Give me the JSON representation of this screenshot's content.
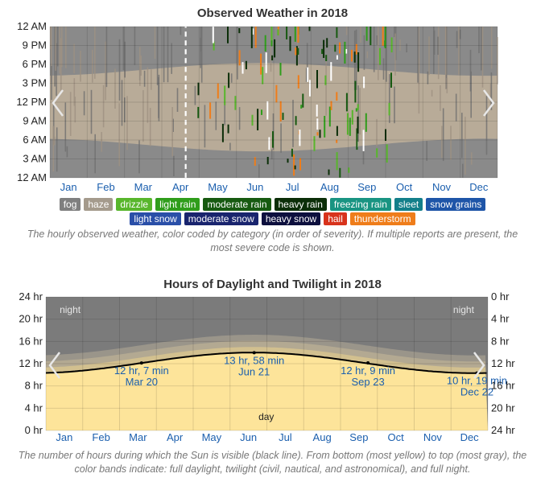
{
  "weather": {
    "title": "Observed Weather in 2018",
    "y_ticks": [
      "12 AM",
      "9 PM",
      "6 PM",
      "3 PM",
      "12 PM",
      "9 AM",
      "6 AM",
      "3 AM",
      "12 AM"
    ],
    "legend_row1": [
      {
        "label": "fog",
        "color": "#7f7f7f"
      },
      {
        "label": "haze",
        "color": "#a49a8c"
      },
      {
        "label": "drizzle",
        "color": "#58b62c"
      },
      {
        "label": "light rain",
        "color": "#2f9d1b"
      },
      {
        "label": "moderate rain",
        "color": "#175a11"
      },
      {
        "label": "heavy rain",
        "color": "#0b2e08"
      },
      {
        "label": "freezing rain",
        "color": "#199482"
      },
      {
        "label": "sleet",
        "color": "#137f8a"
      },
      {
        "label": "snow grains",
        "color": "#1e55a8"
      }
    ],
    "legend_row2": [
      {
        "label": "light snow",
        "color": "#2a4fa8"
      },
      {
        "label": "moderate snow",
        "color": "#19246e"
      },
      {
        "label": "heavy snow",
        "color": "#0d0f3e"
      },
      {
        "label": "hail",
        "color": "#d8331c"
      },
      {
        "label": "thunderstorm",
        "color": "#ef7d1a"
      }
    ],
    "caption": "The hourly observed weather, color coded by category (in order of severity). If multiple reports are present, the most severe code is shown."
  },
  "daylight": {
    "title": "Hours of Daylight and Twilight in 2018",
    "left_ticks": [
      "24 hr",
      "20 hr",
      "16 hr",
      "12 hr",
      "8 hr",
      "4 hr",
      "0 hr"
    ],
    "right_ticks": [
      "0 hr",
      "4 hr",
      "8 hr",
      "12 hr",
      "16 hr",
      "20 hr",
      "24 hr"
    ],
    "night_label": "night",
    "day_label": "day",
    "caption": "The number of hours during which the Sun is visible (black line). From bottom (most yellow) to top (most gray), the color bands indicate: full daylight, twilight (civil, nautical, and astronomical), and full night."
  },
  "months": [
    "Jan",
    "Feb",
    "Mar",
    "Apr",
    "May",
    "Jun",
    "Jul",
    "Aug",
    "Sep",
    "Oct",
    "Nov",
    "Dec"
  ],
  "chart_data": [
    {
      "type": "heatmap",
      "title": "Observed Weather in 2018",
      "x_categories": [
        "Jan",
        "Feb",
        "Mar",
        "Apr",
        "May",
        "Jun",
        "Jul",
        "Aug",
        "Sep",
        "Oct",
        "Nov",
        "Dec"
      ],
      "y_ticks": [
        "12 AM",
        "3 AM",
        "6 AM",
        "9 AM",
        "12 PM",
        "3 PM",
        "6 PM",
        "9 PM",
        "12 AM"
      ],
      "legend": [
        "fog",
        "haze",
        "drizzle",
        "light rain",
        "moderate rain",
        "heavy rain",
        "freezing rain",
        "sleet",
        "snow grains",
        "light snow",
        "moderate snow",
        "heavy snow",
        "hail",
        "thunderstorm"
      ]
    },
    {
      "type": "line",
      "title": "Hours of Daylight and Twilight in 2018",
      "x_categories": [
        "Jan",
        "Feb",
        "Mar",
        "Apr",
        "May",
        "Jun",
        "Jul",
        "Aug",
        "Sep",
        "Oct",
        "Nov",
        "Dec"
      ],
      "ylim": [
        0,
        24
      ],
      "y_unit": "hr",
      "daylight_hours_by_month": [
        10.3,
        11.0,
        12.0,
        13.0,
        13.8,
        14.0,
        13.8,
        13.1,
        12.2,
        11.2,
        10.5,
        10.3
      ],
      "annotations": [
        {
          "label": "12 hr, 7 min",
          "date": "Mar 20",
          "hours": 12.12
        },
        {
          "label": "13 hr, 58 min",
          "date": "Jun 21",
          "hours": 13.97
        },
        {
          "label": "12 hr, 9 min",
          "date": "Sep 23",
          "hours": 12.15
        },
        {
          "label": "10 hr, 19 min",
          "date": "Dec 22",
          "hours": 10.32
        }
      ]
    }
  ]
}
